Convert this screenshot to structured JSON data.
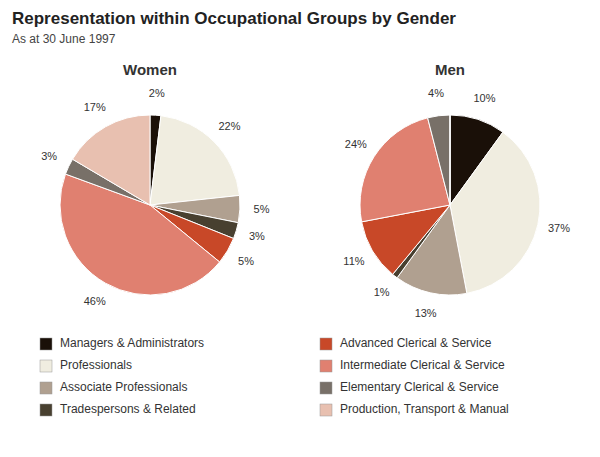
{
  "chart_data": {
    "type": "pie",
    "title": "Representation within Occupational Groups by Gender",
    "subtitle": "As at 30 June 1997",
    "categories": [
      "Managers & Administrators",
      "Professionals",
      "Associate Professionals",
      "Tradespersons & Related",
      "Advanced Clerical & Service",
      "Intermediate Clerical & Service",
      "Elementary Clerical & Service",
      "Production, Transport & Manual"
    ],
    "colors": [
      "#1a1008",
      "#f0ede0",
      "#b0a090",
      "#484030",
      "#c84828",
      "#e08070",
      "#787068",
      "#e8c0b0"
    ],
    "series": [
      {
        "name": "Women",
        "values": [
          2,
          22,
          5,
          3,
          5,
          46,
          3,
          17
        ],
        "value_labels": [
          "2%",
          "22%",
          "5%",
          "3%",
          "5%",
          "46%",
          "3%",
          "17%"
        ]
      },
      {
        "name": "Men",
        "values": [
          10,
          37,
          13,
          1,
          11,
          24,
          4,
          0
        ],
        "value_labels": [
          "10%",
          "37%",
          "13%",
          "1%",
          "11%",
          "24%",
          "4%",
          null
        ]
      }
    ],
    "data_labels": true,
    "legend": "bottom"
  }
}
